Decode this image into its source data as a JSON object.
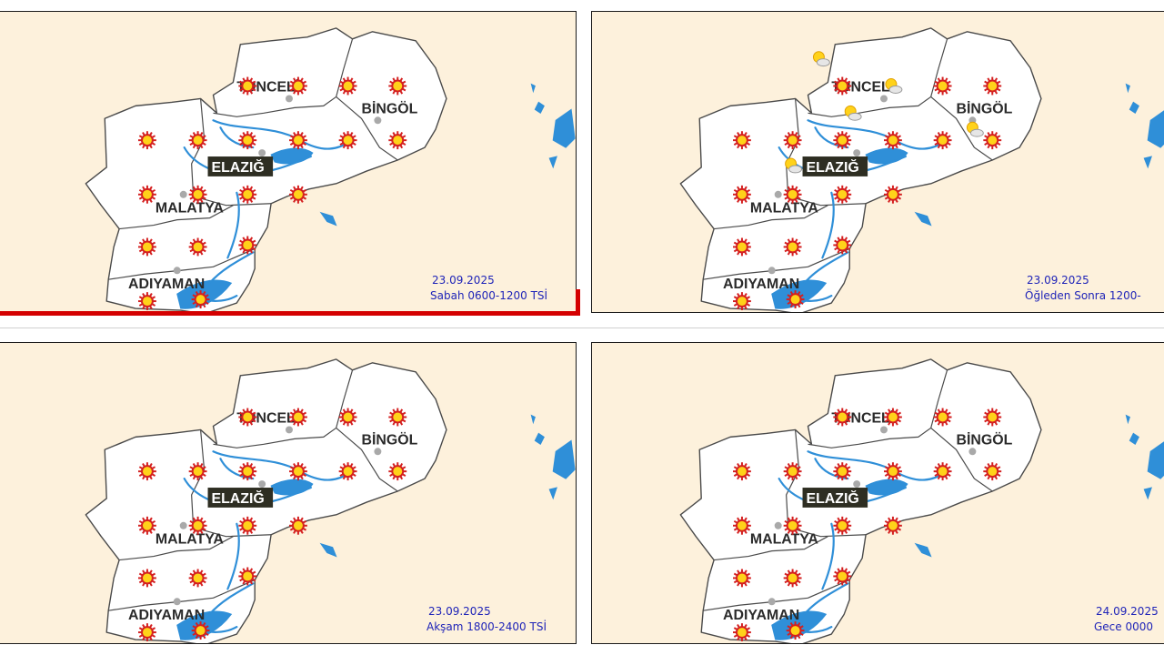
{
  "provinces": {
    "tunceli": "TUNCELİ",
    "bingol": "BİNGÖL",
    "elazig": "ELAZIĞ",
    "malatya": "MALATYA",
    "adiyaman": "ADIYAMAN"
  },
  "panels": [
    {
      "date": "23.09.2025",
      "period": "Sabah 0600-1200 TSİ",
      "selected": true
    },
    {
      "date": "23.09.2025",
      "period": "Öğleden Sonra 1200-",
      "selected": false
    },
    {
      "date": "23.09.2025",
      "period": "Akşam 1800-2400 TSİ",
      "selected": false
    },
    {
      "date": "24.09.2025",
      "period": "Gece 0000",
      "selected": false
    }
  ],
  "icons": {
    "sunny": "sun-icon",
    "partly_cloudy": "partly-cloudy-icon"
  },
  "colors": {
    "sea_background": "#fdf1dc",
    "land": "#ffffff",
    "water": "#2f8fd8",
    "sun_outer": "#d42020",
    "sun_inner": "#ffd21a",
    "date_text": "#1f24b8",
    "selection": "#d40000"
  }
}
